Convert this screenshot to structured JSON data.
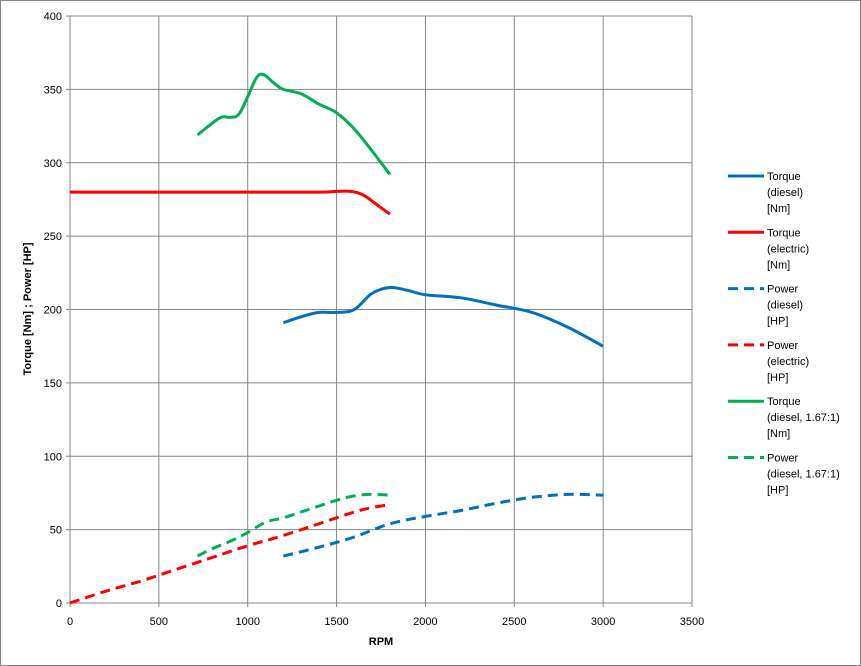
{
  "chart_data": {
    "type": "line",
    "xlabel": "RPM",
    "ylabel": "Torque [Nm] ; Power [HP]",
    "xlim": [
      0,
      3500
    ],
    "ylim": [
      0,
      400
    ],
    "xticks": [
      "0",
      "500",
      "1000",
      "1500",
      "2000",
      "2500",
      "3000",
      "3500"
    ],
    "yticks": [
      "0",
      "50",
      "100",
      "150",
      "200",
      "250",
      "300",
      "350",
      "400"
    ],
    "grid": true,
    "legend_position": "right",
    "series": [
      {
        "name": "Torque (diesel) [Nm]",
        "legend_lines": [
          "Torque",
          "(diesel)",
          "[Nm]"
        ],
        "color": "#0070c0",
        "dashed": false,
        "points": [
          [
            1200,
            191
          ],
          [
            1300,
            195
          ],
          [
            1400,
            198
          ],
          [
            1500,
            198
          ],
          [
            1600,
            200
          ],
          [
            1700,
            211
          ],
          [
            1800,
            215
          ],
          [
            1900,
            213
          ],
          [
            2000,
            210
          ],
          [
            2200,
            208
          ],
          [
            2400,
            203
          ],
          [
            2600,
            198
          ],
          [
            2800,
            188
          ],
          [
            3000,
            175
          ]
        ]
      },
      {
        "name": "Torque (electric) [Nm]",
        "legend_lines": [
          "Torque",
          "(electric)",
          "[Nm]"
        ],
        "color": "#ff0000",
        "dashed": false,
        "points": [
          [
            0,
            280
          ],
          [
            500,
            280
          ],
          [
            1000,
            280
          ],
          [
            1400,
            280
          ],
          [
            1500,
            280.5
          ],
          [
            1580,
            280.5
          ],
          [
            1650,
            278
          ],
          [
            1720,
            272
          ],
          [
            1800,
            265
          ]
        ]
      },
      {
        "name": "Power (diesel) [HP]",
        "legend_lines": [
          "Power",
          "(diesel)",
          "[HP]"
        ],
        "color": "#0070c0",
        "dashed": true,
        "points": [
          [
            1200,
            32
          ],
          [
            1400,
            38
          ],
          [
            1600,
            45
          ],
          [
            1800,
            54
          ],
          [
            2000,
            59
          ],
          [
            2200,
            63
          ],
          [
            2400,
            68
          ],
          [
            2600,
            72
          ],
          [
            2800,
            74
          ],
          [
            3000,
            73.5
          ]
        ]
      },
      {
        "name": "Power (electric) [HP]",
        "legend_lines": [
          "Power",
          "(electric)",
          "[HP]"
        ],
        "color": "#ff0000",
        "dashed": true,
        "points": [
          [
            0,
            0
          ],
          [
            200,
            8
          ],
          [
            400,
            15
          ],
          [
            600,
            23
          ],
          [
            800,
            31
          ],
          [
            1000,
            39
          ],
          [
            1200,
            46
          ],
          [
            1400,
            54
          ],
          [
            1600,
            62
          ],
          [
            1700,
            65
          ],
          [
            1800,
            67
          ]
        ]
      },
      {
        "name": "Torque (diesel, 1.67:1) [Nm]",
        "legend_lines": [
          "Torque",
          "(diesel, 1.67:1)",
          "[Nm]"
        ],
        "color": "#00b050",
        "dashed": false,
        "points": [
          [
            718,
            319
          ],
          [
            780,
            325
          ],
          [
            850,
            331
          ],
          [
            900,
            331
          ],
          [
            950,
            333
          ],
          [
            1000,
            345
          ],
          [
            1050,
            358
          ],
          [
            1090,
            360
          ],
          [
            1150,
            354
          ],
          [
            1200,
            350
          ],
          [
            1300,
            347
          ],
          [
            1400,
            340
          ],
          [
            1500,
            334
          ],
          [
            1600,
            323
          ],
          [
            1700,
            308
          ],
          [
            1800,
            292
          ]
        ]
      },
      {
        "name": "Power (diesel, 1.67:1) [HP]",
        "legend_lines": [
          "Power",
          "(diesel, 1.67:1)",
          "[HP]"
        ],
        "color": "#00b050",
        "dashed": true,
        "points": [
          [
            718,
            32
          ],
          [
            800,
            37
          ],
          [
            900,
            42
          ],
          [
            1000,
            48
          ],
          [
            1100,
            55
          ],
          [
            1200,
            58
          ],
          [
            1300,
            62
          ],
          [
            1400,
            66
          ],
          [
            1500,
            70
          ],
          [
            1600,
            73
          ],
          [
            1700,
            74
          ],
          [
            1800,
            73.5
          ]
        ]
      }
    ]
  }
}
